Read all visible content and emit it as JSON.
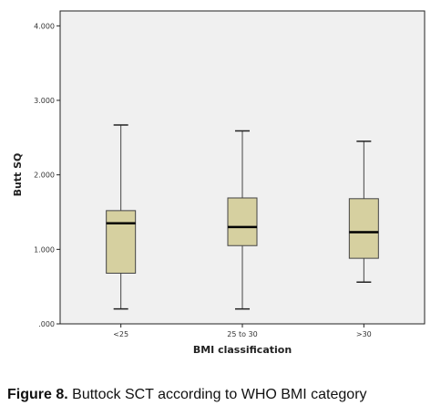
{
  "caption": {
    "label": "Figure 8.",
    "text": "Buttock SCT according to WHO BMI category"
  },
  "colors": {
    "plot_background": "#f0f0f0",
    "box_fill": "#d6d0a0",
    "box_stroke": "#444444",
    "median": "#000000"
  },
  "chart_data": {
    "type": "boxplot",
    "title": "",
    "xlabel": "BMI classification",
    "ylabel": "Butt SQ",
    "ylim": [
      0,
      4.2
    ],
    "yticks": [
      0,
      1,
      2,
      3,
      4
    ],
    "ytick_labels": [
      ".000",
      "1.000",
      "2.000",
      "3.000",
      "4.000"
    ],
    "grid": false,
    "categories": [
      "<25",
      "25 to 30",
      ">30"
    ],
    "boxes": [
      {
        "category": "<25",
        "min": 0.2,
        "q1": 0.68,
        "median": 1.35,
        "q3": 1.52,
        "max": 2.67
      },
      {
        "category": "25 to 30",
        "min": 0.2,
        "q1": 1.05,
        "median": 1.3,
        "q3": 1.69,
        "max": 2.59
      },
      {
        "category": ">30",
        "min": 0.56,
        "q1": 0.88,
        "median": 1.23,
        "q3": 1.68,
        "max": 2.45
      }
    ]
  }
}
